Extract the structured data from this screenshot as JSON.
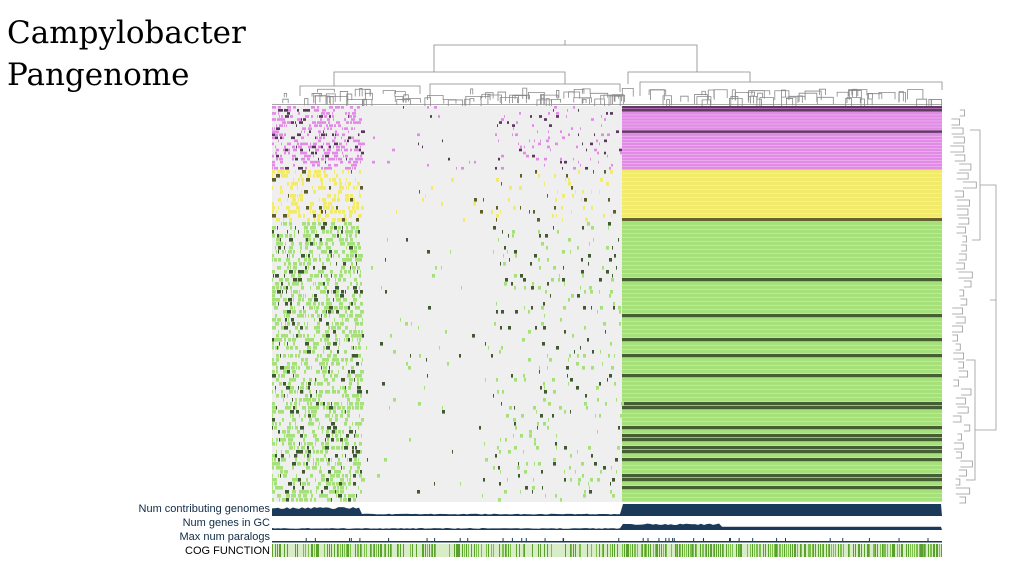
{
  "title_lines": [
    "Campylobacter",
    "Pangenome"
  ],
  "layer_labels": {
    "num_contributing_genomes": "Num contributing genomes",
    "num_genes_in_gc": "Num genes in GC",
    "max_num_paralogs": "Max num paralogs",
    "cog_function": "COG FUNCTION"
  },
  "colors": {
    "group_a": "#e28be6",
    "group_b": "#f1ea6a",
    "group_c": "#a6e07a",
    "absent": "#efefef",
    "bars": "#1b3a5a",
    "cog": "#5aa02c"
  }
}
